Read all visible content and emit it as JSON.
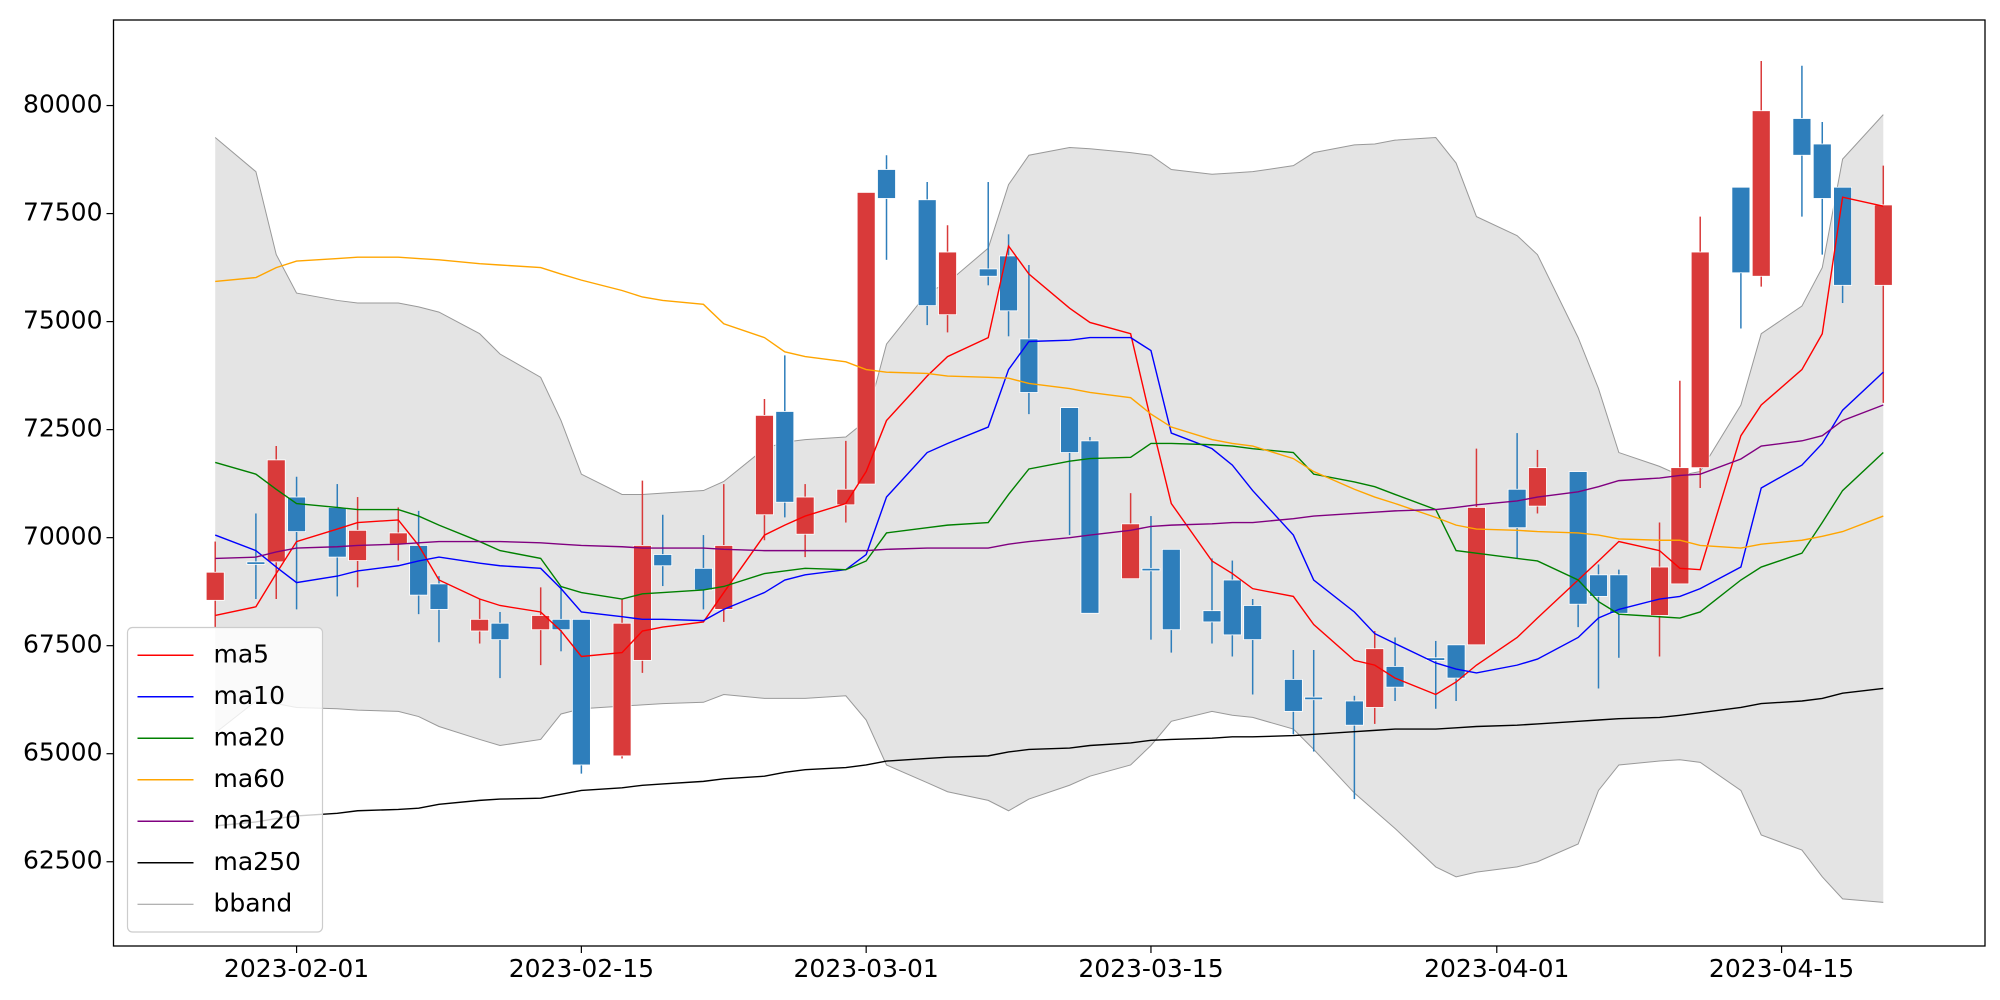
{
  "chart_data": {
    "type": "candlestick",
    "x": [
      "2023-01-28",
      "2023-01-30",
      "2023-01-31",
      "2023-02-01",
      "2023-02-03",
      "2023-02-04",
      "2023-02-06",
      "2023-02-07",
      "2023-02-08",
      "2023-02-10",
      "2023-02-11",
      "2023-02-13",
      "2023-02-14",
      "2023-02-15",
      "2023-02-17",
      "2023-02-18",
      "2023-02-19",
      "2023-02-21",
      "2023-02-22",
      "2023-02-24",
      "2023-02-25",
      "2023-02-26",
      "2023-02-28",
      "2023-03-01",
      "2023-03-02",
      "2023-03-04",
      "2023-03-05",
      "2023-03-07",
      "2023-03-08",
      "2023-03-09",
      "2023-03-11",
      "2023-03-12",
      "2023-03-14",
      "2023-03-15",
      "2023-03-16",
      "2023-03-18",
      "2023-03-19",
      "2023-03-20",
      "2023-03-22",
      "2023-03-23",
      "2023-03-25",
      "2023-03-26",
      "2023-03-27",
      "2023-03-29",
      "2023-03-30",
      "2023-03-31",
      "2023-04-02",
      "2023-04-03",
      "2023-04-05",
      "2023-04-06",
      "2023-04-07",
      "2023-04-09",
      "2023-04-10",
      "2023-04-11",
      "2023-04-13",
      "2023-04-14",
      "2023-04-16",
      "2023-04-17",
      "2023-04-18",
      "2023-04-20"
    ],
    "open": [
      68550,
      69440,
      69440,
      70940,
      70700,
      69470,
      69850,
      69820,
      68930,
      67840,
      68020,
      67870,
      68110,
      68110,
      64950,
      67160,
      69610,
      69290,
      68340,
      70530,
      72920,
      70080,
      70760,
      71240,
      78520,
      77820,
      75160,
      76220,
      76520,
      74600,
      73010,
      72240,
      69050,
      69290,
      69730,
      68310,
      69020,
      68430,
      66720,
      66310,
      66220,
      66070,
      67020,
      67220,
      67520,
      67520,
      71120,
      70730,
      71530,
      69140,
      69140,
      68200,
      68930,
      71620,
      78110,
      76050,
      79700,
      79110,
      78110,
      75840
    ],
    "high": [
      69910,
      70560,
      72120,
      71410,
      71240,
      70940,
      70700,
      70620,
      69110,
      68580,
      68280,
      68850,
      68880,
      68110,
      68580,
      71320,
      70530,
      70060,
      71240,
      73210,
      74220,
      71240,
      72240,
      77990,
      78850,
      78230,
      77230,
      78230,
      77020,
      76310,
      73010,
      72330,
      71030,
      70500,
      69730,
      69520,
      69470,
      68580,
      67400,
      67400,
      66340,
      67840,
      67690,
      67610,
      67520,
      72060,
      72420,
      72030,
      71530,
      69380,
      69260,
      70350,
      73630,
      77430,
      78110,
      81030,
      80920,
      79620,
      78110,
      78610
    ],
    "low": [
      67930,
      68580,
      68580,
      68340,
      68640,
      68850,
      69470,
      68230,
      67580,
      67550,
      66750,
      67050,
      67370,
      64540,
      64890,
      66870,
      68880,
      68340,
      68050,
      69940,
      70470,
      69550,
      70350,
      71240,
      76430,
      74920,
      74750,
      75840,
      74660,
      72860,
      70060,
      68250,
      69050,
      67640,
      67340,
      67550,
      67250,
      66370,
      65450,
      65050,
      63950,
      65690,
      66220,
      66040,
      66220,
      67520,
      69520,
      70560,
      67930,
      66510,
      67220,
      67250,
      68930,
      71150,
      74840,
      75810,
      77430,
      76550,
      75430,
      73120
    ],
    "close": [
      69200,
      69400,
      71800,
      70140,
      69550,
      70170,
      70110,
      68670,
      68340,
      68110,
      67640,
      68200,
      67870,
      64740,
      68020,
      69820,
      69350,
      68790,
      69820,
      72830,
      70820,
      70940,
      71120,
      77990,
      77850,
      75370,
      76610,
      76050,
      75250,
      73360,
      71970,
      68250,
      70320,
      69260,
      67870,
      68050,
      67750,
      67640,
      65980,
      66250,
      65660,
      67430,
      66540,
      67160,
      66750,
      70700,
      70230,
      71620,
      68460,
      68640,
      68250,
      69320,
      71620,
      76610,
      76130,
      79880,
      78850,
      77850,
      75840,
      77700
    ],
    "up_color": "#d93a3a",
    "down_color": "#2e7ebb",
    "lines": [
      {
        "name": "ma5",
        "color": "red",
        "values": [
          68200,
          68400,
          69170,
          69910,
          70200,
          70350,
          70410,
          69820,
          69020,
          68580,
          68430,
          68280,
          67840,
          67250,
          67340,
          67840,
          67930,
          68050,
          68730,
          70060,
          70290,
          70500,
          70790,
          71530,
          72710,
          73740,
          74190,
          74630,
          76750,
          76100,
          75310,
          74980,
          74720,
          72710,
          70790,
          69460,
          69170,
          68820,
          68640,
          67990,
          67160,
          67050,
          66750,
          66370,
          66660,
          67050,
          67690,
          68140,
          69020,
          69460,
          69910,
          69700,
          69290,
          69260,
          72360,
          73070,
          73890,
          74720,
          77880,
          77670
        ]
      },
      {
        "name": "ma10",
        "color": "blue",
        "values": [
          70060,
          69700,
          69320,
          68960,
          69110,
          69230,
          69350,
          69460,
          69550,
          69410,
          69350,
          69290,
          68820,
          68280,
          68170,
          68110,
          68110,
          68080,
          68340,
          68730,
          69020,
          69140,
          69260,
          69610,
          70940,
          71970,
          72180,
          72560,
          73890,
          74540,
          74570,
          74630,
          74630,
          74330,
          72420,
          72060,
          71680,
          71090,
          70060,
          69020,
          68280,
          67780,
          67550,
          67100,
          66960,
          66870,
          67050,
          67190,
          67690,
          68140,
          68340,
          68580,
          68640,
          68820,
          69320,
          71150,
          71680,
          72180,
          72950,
          73830
        ]
      },
      {
        "name": "ma20",
        "color": "green",
        "values": [
          71740,
          71470,
          71120,
          70790,
          70700,
          70650,
          70650,
          70500,
          70290,
          69910,
          69700,
          69520,
          68870,
          68730,
          68580,
          68700,
          68730,
          68790,
          68870,
          69170,
          69230,
          69290,
          69260,
          69460,
          70110,
          70230,
          70290,
          70350,
          71000,
          71590,
          71770,
          71830,
          71860,
          72180,
          72180,
          72150,
          72120,
          72060,
          71970,
          71470,
          71290,
          71180,
          71000,
          70650,
          69700,
          69640,
          69520,
          69460,
          69020,
          68520,
          68230,
          68170,
          68140,
          68280,
          69020,
          69320,
          69640,
          70350,
          71090,
          71970
        ]
      },
      {
        "name": "ma60",
        "color": "orange",
        "values": [
          75930,
          76020,
          76250,
          76400,
          76460,
          76490,
          76490,
          76460,
          76430,
          76340,
          76310,
          76250,
          76100,
          75960,
          75720,
          75570,
          75490,
          75400,
          74950,
          74630,
          74300,
          74190,
          74070,
          73890,
          73830,
          73800,
          73740,
          73710,
          73690,
          73570,
          73450,
          73360,
          73240,
          72860,
          72560,
          72270,
          72180,
          72120,
          71830,
          71530,
          71120,
          70940,
          70790,
          70470,
          70290,
          70200,
          70170,
          70140,
          70110,
          70060,
          69970,
          69940,
          69940,
          69820,
          69760,
          69850,
          69940,
          70030,
          70140,
          70500
        ]
      },
      {
        "name": "ma120",
        "color": "purple",
        "values": [
          69520,
          69550,
          69670,
          69760,
          69790,
          69820,
          69850,
          69880,
          69910,
          69910,
          69910,
          69880,
          69850,
          69820,
          69790,
          69760,
          69760,
          69760,
          69730,
          69700,
          69700,
          69700,
          69700,
          69700,
          69730,
          69760,
          69760,
          69760,
          69850,
          69910,
          70000,
          70060,
          70170,
          70260,
          70290,
          70320,
          70350,
          70350,
          70440,
          70500,
          70560,
          70590,
          70620,
          70650,
          70700,
          70760,
          70850,
          70940,
          71060,
          71180,
          71320,
          71380,
          71440,
          71470,
          71820,
          72120,
          72240,
          72360,
          72710,
          73070
        ]
      },
      {
        "name": "ma250",
        "color": "black",
        "values": [
          63330,
          63420,
          63500,
          63560,
          63620,
          63680,
          63710,
          63740,
          63830,
          63920,
          63950,
          63970,
          64060,
          64150,
          64210,
          64270,
          64300,
          64360,
          64420,
          64480,
          64570,
          64630,
          64680,
          64740,
          64830,
          64890,
          64920,
          64950,
          65040,
          65100,
          65130,
          65190,
          65250,
          65310,
          65330,
          65360,
          65390,
          65390,
          65420,
          65450,
          65510,
          65540,
          65570,
          65570,
          65600,
          65630,
          65660,
          65690,
          65750,
          65780,
          65810,
          65840,
          65890,
          65950,
          66070,
          66160,
          66220,
          66280,
          66400,
          66510
        ]
      }
    ],
    "band": {
      "name": "bband",
      "color": "#999999",
      "fill": "#e4e4e4",
      "upper": [
        79260,
        78470,
        76550,
        75660,
        75490,
        75430,
        75430,
        75340,
        75220,
        74720,
        74250,
        73710,
        72710,
        71470,
        71000,
        71000,
        71030,
        71090,
        71300,
        72060,
        72210,
        72270,
        72330,
        72710,
        74480,
        75660,
        75900,
        76700,
        78170,
        78850,
        79030,
        79000,
        78910,
        78850,
        78520,
        78410,
        78440,
        78470,
        78610,
        78910,
        79090,
        79110,
        79200,
        79260,
        78670,
        77430,
        76990,
        76550,
        74630,
        73450,
        71970,
        71650,
        71440,
        71530,
        73070,
        74720,
        75360,
        76250,
        78760,
        79790
      ],
      "lower": [
        65480,
        66220,
        66160,
        66070,
        66040,
        66010,
        65980,
        65860,
        65630,
        65330,
        65190,
        65330,
        65920,
        66040,
        66100,
        66130,
        66160,
        66190,
        66370,
        66280,
        66280,
        66280,
        66340,
        65780,
        64740,
        64330,
        64120,
        63920,
        63680,
        63950,
        64270,
        64480,
        64740,
        65190,
        65750,
        65980,
        65890,
        65840,
        65570,
        65100,
        64090,
        63680,
        63270,
        62380,
        62150,
        62260,
        62380,
        62500,
        62910,
        64150,
        64740,
        64830,
        64860,
        64800,
        64150,
        63120,
        62770,
        62150,
        61640,
        61560
      ]
    },
    "xlim": [
      "2023-01-23",
      "2023-04-25"
    ],
    "xticks": [
      "2023-02-01",
      "2023-02-15",
      "2023-03-01",
      "2023-03-15",
      "2023-04-01",
      "2023-04-15"
    ],
    "ylim": [
      60550,
      81980
    ],
    "yticks": [
      62500,
      65000,
      67500,
      70000,
      72500,
      75000,
      77500,
      80000
    ],
    "legend": "lower left"
  }
}
